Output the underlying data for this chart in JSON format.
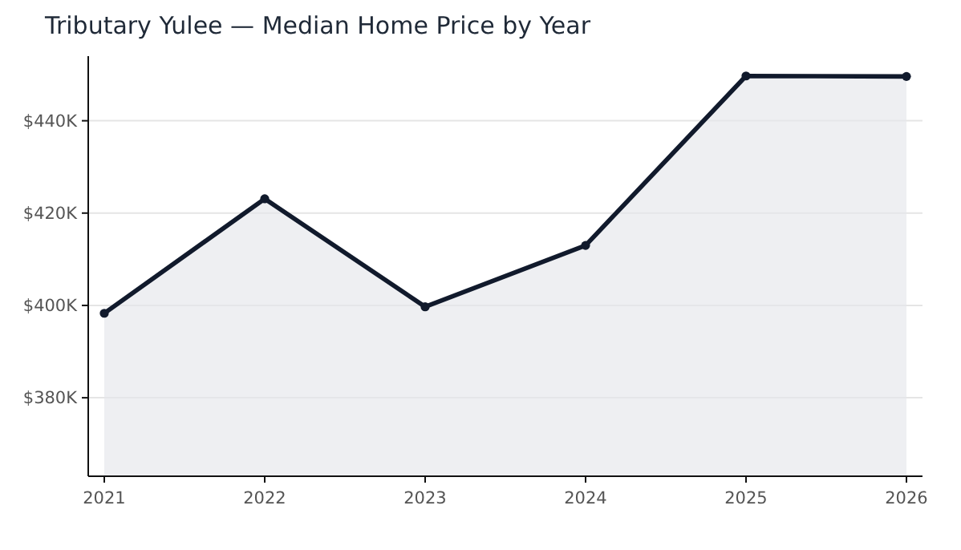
{
  "chart_data": {
    "type": "area",
    "title": "Tributary Yulee — Median Home Price by Year",
    "x": [
      2021,
      2022,
      2023,
      2024,
      2025,
      2026
    ],
    "series": [
      {
        "color": "#111a2c",
        "values": [
          398.3,
          423.1,
          399.7,
          413.0,
          449.7,
          449.6
        ]
      }
    ],
    "xlim": [
      2020.9,
      2026.1
    ],
    "xticks": [
      2021,
      2022,
      2023,
      2024,
      2025,
      2026
    ],
    "ylim": [
      363,
      454
    ],
    "yticks": [
      {
        "value": 380,
        "label": "$380K"
      },
      {
        "value": 400,
        "label": "$400K"
      },
      {
        "value": 420,
        "label": "$420K"
      },
      {
        "value": 440,
        "label": "$440K"
      }
    ],
    "grid": "y",
    "marker": "circle"
  }
}
